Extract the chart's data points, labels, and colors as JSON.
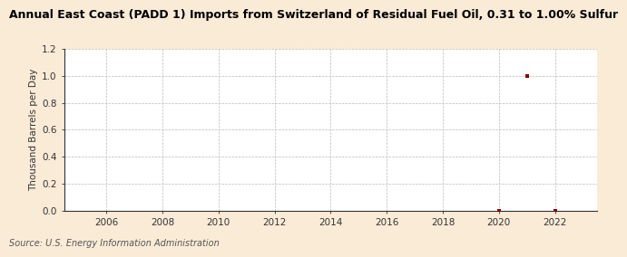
{
  "title": "Annual East Coast (PADD 1) Imports from Switzerland of Residual Fuel Oil, 0.31 to 1.00% Sulfur",
  "ylabel": "Thousand Barrels per Day",
  "source": "Source: U.S. Energy Information Administration",
  "background_color": "#faebd7",
  "plot_background_color": "#ffffff",
  "data_points": [
    {
      "year": 2021,
      "value": 1.0
    },
    {
      "year": 2020,
      "value": 0.0
    },
    {
      "year": 2022,
      "value": 0.0
    }
  ],
  "marker_color": "#8b0000",
  "xlim_min": 2004.5,
  "xlim_max": 2023.5,
  "ylim_min": 0.0,
  "ylim_max": 1.2,
  "xticks": [
    2006,
    2008,
    2010,
    2012,
    2014,
    2016,
    2018,
    2020,
    2022
  ],
  "yticks": [
    0.0,
    0.2,
    0.4,
    0.6,
    0.8,
    1.0,
    1.2
  ],
  "title_fontsize": 9.0,
  "axis_label_fontsize": 7.5,
  "tick_fontsize": 7.5,
  "source_fontsize": 7.0
}
